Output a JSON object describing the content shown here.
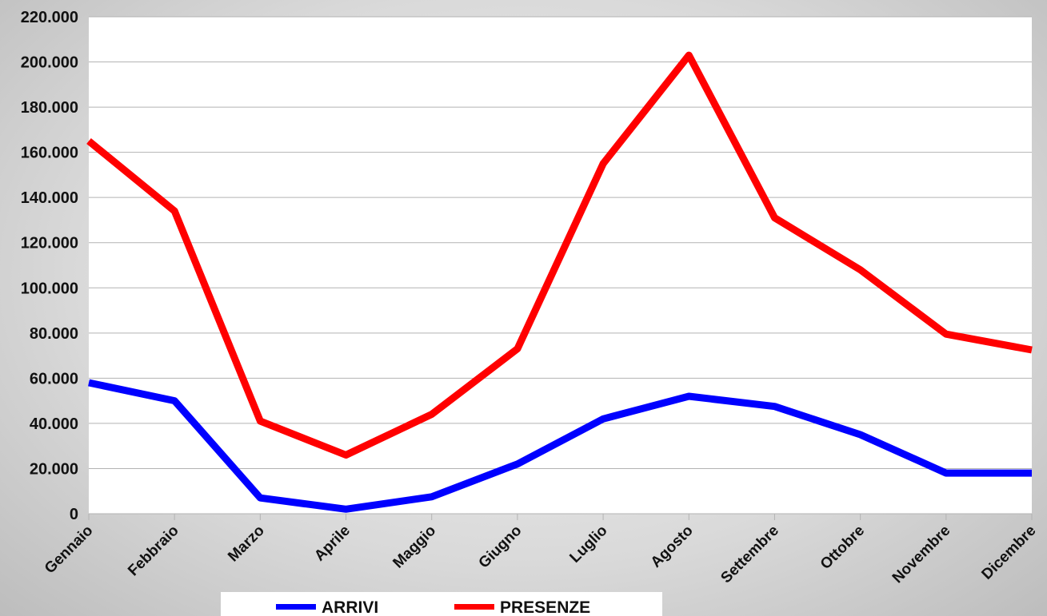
{
  "chart_data": {
    "type": "line",
    "title": "",
    "xlabel": "",
    "ylabel": "",
    "categories": [
      "Gennaio",
      "Febbraio",
      "Marzo",
      "Aprile",
      "Maggio",
      "Giugno",
      "Luglio",
      "Agosto",
      "Settembre",
      "Ottobre",
      "Novembre",
      "Dicembre"
    ],
    "yticks": [
      "0",
      "20.000",
      "40.000",
      "60.000",
      "80.000",
      "100.000",
      "120.000",
      "140.000",
      "160.000",
      "180.000",
      "200.000",
      "220.000"
    ],
    "ylim": [
      0,
      220000
    ],
    "grid": true,
    "legend_position": "bottom",
    "series": [
      {
        "name": "ARRIVI",
        "color": "#0000ff",
        "values": [
          58000,
          50000,
          7000,
          2000,
          7500,
          22000,
          42000,
          52000,
          47500,
          35000,
          18000,
          18000
        ]
      },
      {
        "name": "PRESENZE",
        "color": "#ff0000",
        "values": [
          165000,
          134000,
          41000,
          26000,
          44000,
          73000,
          155000,
          203000,
          131000,
          108000,
          79500,
          72500
        ]
      }
    ]
  }
}
